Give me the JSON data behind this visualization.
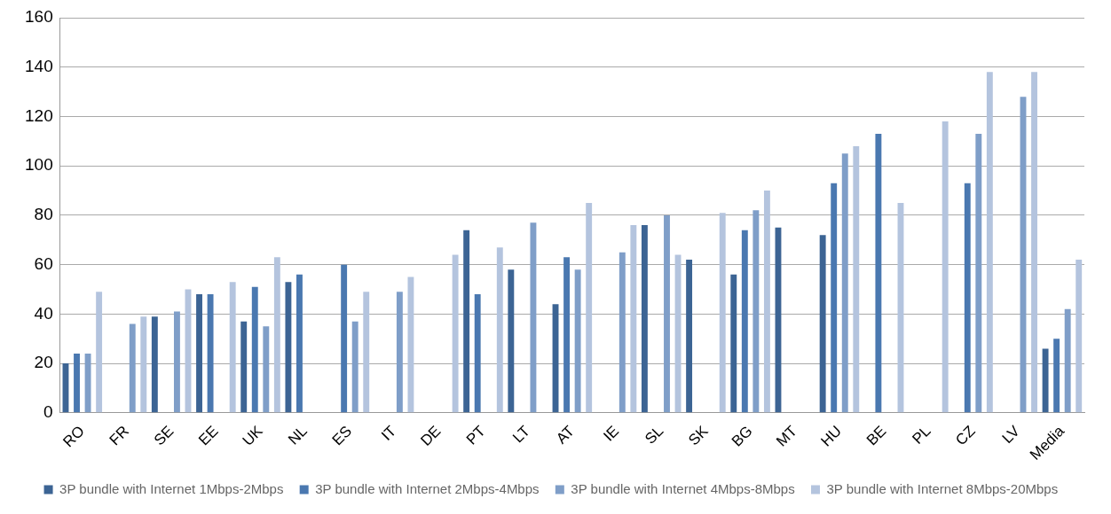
{
  "chart_data": {
    "type": "bar",
    "categories": [
      "RO",
      "FR",
      "SE",
      "EE",
      "UK",
      "NL",
      "ES",
      "IT",
      "DE",
      "PT",
      "LT",
      "AT",
      "IE",
      "SL",
      "SK",
      "BG",
      "MT",
      "HU",
      "BE",
      "PL",
      "CZ",
      "LV",
      "Media"
    ],
    "series": [
      {
        "name": "3P bundle with Internet 1Mbps-2Mbps",
        "color": "#3c6494",
        "values": [
          20,
          null,
          39,
          48,
          37,
          53,
          null,
          null,
          null,
          74,
          58,
          44,
          null,
          76,
          62,
          56,
          75,
          72,
          null,
          null,
          null,
          null,
          26
        ]
      },
      {
        "name": "3P bundle with Internet 2Mbps-4Mbps",
        "color": "#4a78b0",
        "values": [
          24,
          null,
          null,
          48,
          51,
          56,
          60,
          null,
          null,
          48,
          null,
          63,
          null,
          null,
          null,
          74,
          null,
          93,
          113,
          null,
          93,
          null,
          30
        ]
      },
      {
        "name": "3P bundle with Internet 4Mbps-8Mbps",
        "color": "#7f9ec8",
        "values": [
          24,
          36,
          41,
          null,
          35,
          null,
          37,
          49,
          null,
          null,
          77,
          58,
          65,
          80,
          null,
          82,
          null,
          105,
          null,
          null,
          113,
          128,
          42
        ]
      },
      {
        "name": "3P bundle with Internet 8Mbps-20Mbps",
        "color": "#b4c4de",
        "values": [
          49,
          39,
          50,
          53,
          63,
          null,
          49,
          55,
          64,
          67,
          null,
          85,
          76,
          64,
          81,
          90,
          null,
          108,
          85,
          118,
          138,
          138,
          62
        ]
      }
    ],
    "ylim": [
      0,
      160
    ],
    "yticks": [
      0,
      20,
      40,
      60,
      80,
      100,
      120,
      140,
      160
    ],
    "grid": "y",
    "legend": "bottom"
  }
}
